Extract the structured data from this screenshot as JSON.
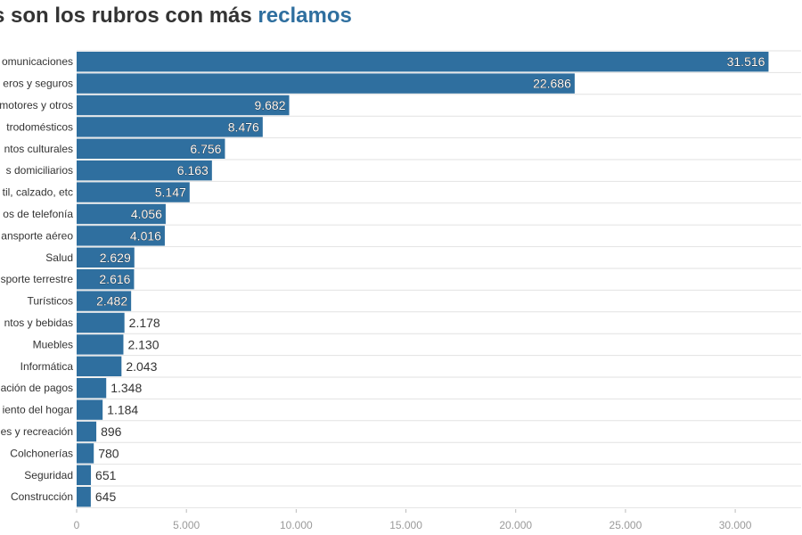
{
  "title": {
    "prefix": "s son los rubros con más",
    "highlight": "reclamos"
  },
  "colors": {
    "bar": "#2f6f9f",
    "grid": "#e2e2e2",
    "highlight": "#2f6f9f"
  },
  "chart_data": {
    "type": "bar",
    "orientation": "horizontal",
    "title": "s son los rubros con más reclamos",
    "categories": [
      "omunicaciones",
      "eros y seguros",
      "motores y otros",
      "trodomésticos",
      "ntos culturales",
      "s domiciliarios",
      "til, calzado, etc",
      "os de telefonía",
      "ansporte aéreo",
      "Salud",
      "sporte terrestre",
      "Turísticos",
      "ntos y bebidas",
      "Muebles",
      "Informática",
      "ación de pagos",
      "iento del hogar",
      "es y recreación",
      "Colchonerías",
      "Seguridad",
      "Construcción"
    ],
    "values": [
      31516,
      22686,
      9682,
      8476,
      6756,
      6163,
      5147,
      4056,
      4016,
      2629,
      2616,
      2482,
      2178,
      2130,
      2043,
      1348,
      1184,
      896,
      780,
      651,
      645
    ],
    "value_labels": [
      "31.516",
      "22.686",
      "9.682",
      "8.476",
      "6.756",
      "6.163",
      "5.147",
      "4.056",
      "4.016",
      "2.629",
      "2.616",
      "2.482",
      "2.178",
      "2.130",
      "2.043",
      "1.348",
      "1.184",
      "896",
      "780",
      "651",
      "645"
    ],
    "xlim": [
      0,
      33000
    ],
    "xticks": [
      0,
      5000,
      10000,
      15000,
      20000,
      25000,
      30000
    ],
    "xtick_labels": [
      "0",
      "5.000",
      "10.000",
      "15.000",
      "20.000",
      "25.000",
      "30.000"
    ],
    "grid": true,
    "legend": "none"
  }
}
